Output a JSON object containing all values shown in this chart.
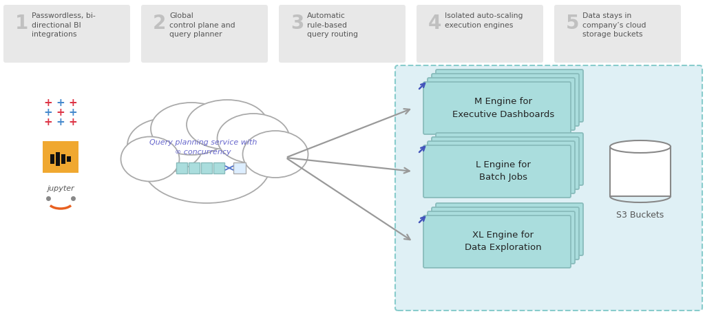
{
  "bg_color": "#ffffff",
  "steps": [
    {
      "num": "1",
      "text": "Passwordless, bi-\ndirectional BI\nintegrations"
    },
    {
      "num": "2",
      "text": "Global\ncontrol plane and\nquery planner"
    },
    {
      "num": "3",
      "text": "Automatic\nrule-based\nquery routing"
    },
    {
      "num": "4",
      "text": "Isolated auto-scaling\nexecution engines"
    },
    {
      "num": "5",
      "text": "Data stays in\ncompany’s cloud\nstorage buckets"
    }
  ],
  "step_box_color": "#e8e8e8",
  "step_num_color": "#c0c0c0",
  "step_text_color": "#555555",
  "cloud_text": "Query planning service with\n∞ concurrency",
  "cloud_text_color": "#6666cc",
  "engines": [
    {
      "label": "M Engine for\nExecutive Dashboards"
    },
    {
      "label": "L Engine for\nBatch Jobs"
    },
    {
      "label": "XL Engine for\nData Exploration"
    }
  ],
  "engine_box_color": "#aadddd",
  "engine_box_border": "#88bbbb",
  "engine_bg_zone": "#dff0f5",
  "engine_zone_border": "#88cccc",
  "arrow_color": "#999999",
  "s3_text": "S3 Buckets",
  "s3_color": "#888888",
  "queue_color": "#aadddd",
  "queue_border": "#88bbbb",
  "queue_small_color": "#ddeeff",
  "diag_arrow_color": "#4455bb"
}
